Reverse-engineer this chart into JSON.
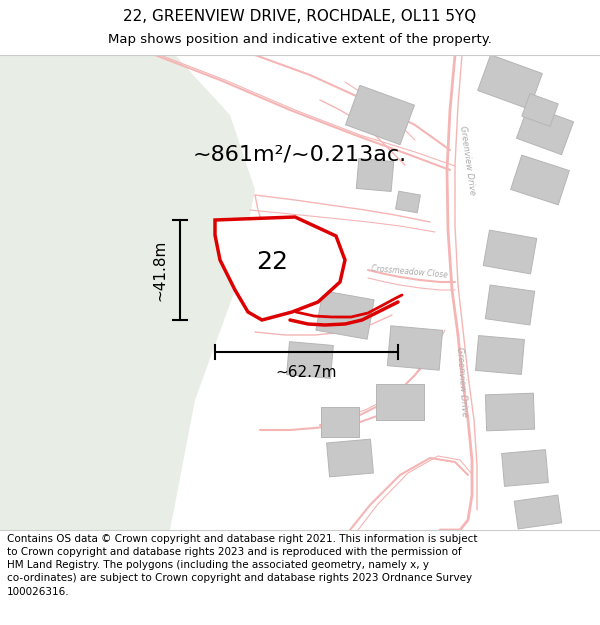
{
  "title_line1": "22, GREENVIEW DRIVE, ROCHDALE, OL11 5YQ",
  "title_line2": "Map shows position and indicative extent of the property.",
  "footer_text": "Contains OS data © Crown copyright and database right 2021. This information is subject\nto Crown copyright and database rights 2023 and is reproduced with the permission of\nHM Land Registry. The polygons (including the associated geometry, namely x, y\nco-ordinates) are subject to Crown copyright and database rights 2023 Ordnance Survey\n100026316.",
  "area_label": "~861m²/~0.213ac.",
  "property_number": "22",
  "width_label": "~62.7m",
  "height_label": "~41.8m",
  "map_bg": "#f8f8f5",
  "left_bg": "#e8ede6",
  "highlight": "#dd0000",
  "road_thin": "#f5b5b5",
  "road_thick": "#f0a0a0",
  "building_fill": "#c8c8c8",
  "building_edge": "#b5b5b5",
  "label_gray": "#aaaaaa",
  "title_fs": 11,
  "subtitle_fs": 9.5,
  "footer_fs": 7.5,
  "area_fs": 16,
  "num_fs": 18,
  "meas_fs": 11
}
